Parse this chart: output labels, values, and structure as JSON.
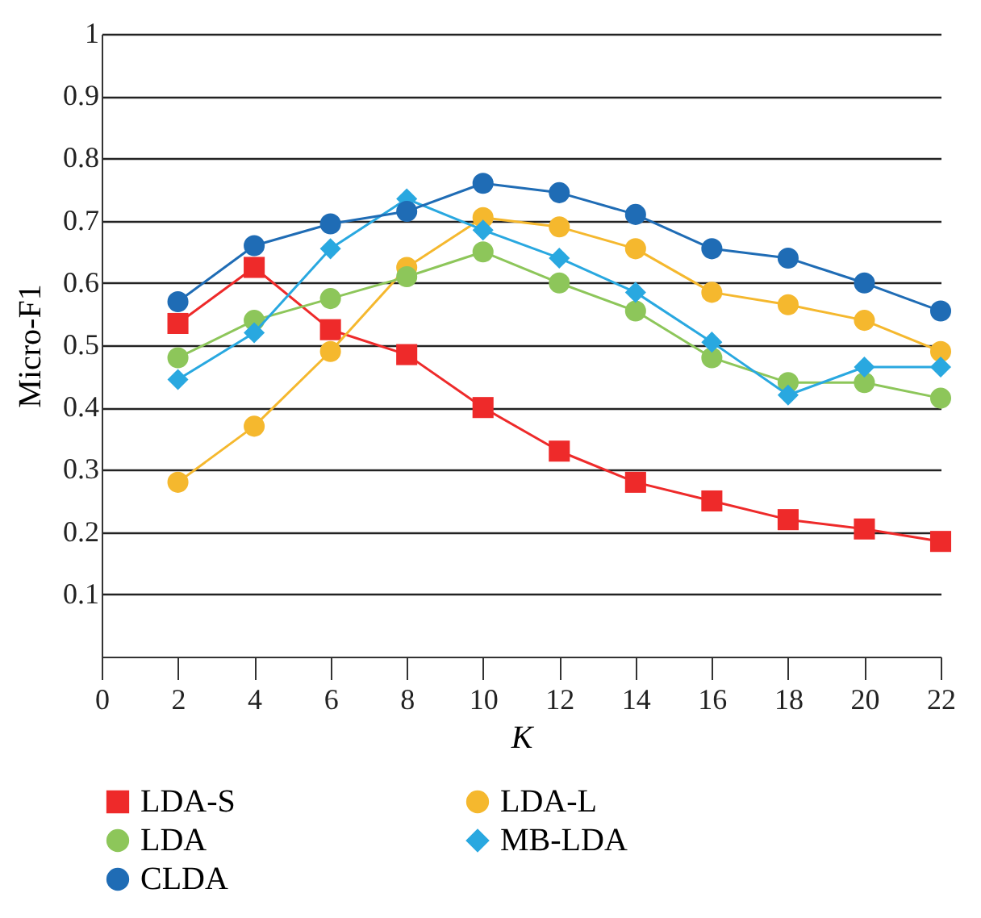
{
  "chart_data": {
    "type": "line",
    "xlabel": "K",
    "ylabel": "Micro-F1",
    "x": [
      2,
      4,
      6,
      8,
      10,
      12,
      14,
      16,
      18,
      20,
      22
    ],
    "xlim": [
      0,
      22
    ],
    "xticks": [
      0,
      2,
      4,
      6,
      8,
      10,
      12,
      14,
      16,
      18,
      20,
      22
    ],
    "ylim": [
      0,
      1
    ],
    "yticks": [
      0.1,
      0.2,
      0.3,
      0.4,
      0.5,
      0.6,
      0.7,
      0.8,
      0.9,
      1
    ],
    "grid": "y",
    "legend": "bottom",
    "series": [
      {
        "name": "LDA-S",
        "color": "#ee2a2a",
        "marker": "square",
        "values": [
          0.535,
          0.625,
          0.525,
          0.485,
          0.4,
          0.33,
          0.28,
          0.25,
          0.22,
          0.205,
          0.185
        ]
      },
      {
        "name": "LDA-L",
        "color": "#f5b82e",
        "marker": "circle",
        "values": [
          0.28,
          0.37,
          0.49,
          0.625,
          0.705,
          0.69,
          0.655,
          0.585,
          0.565,
          0.54,
          0.49
        ]
      },
      {
        "name": "LDA",
        "color": "#8dc65a",
        "marker": "circle",
        "values": [
          0.48,
          0.54,
          0.575,
          0.61,
          0.65,
          0.6,
          0.555,
          0.48,
          0.44,
          0.44,
          0.415
        ]
      },
      {
        "name": "MB-LDA",
        "color": "#29a8e0",
        "marker": "diamond",
        "values": [
          0.445,
          0.52,
          0.655,
          0.735,
          0.685,
          0.64,
          0.585,
          0.505,
          0.42,
          0.465,
          0.465
        ]
      },
      {
        "name": "CLDA",
        "color": "#1f6cb5",
        "marker": "circle",
        "values": [
          0.57,
          0.66,
          0.695,
          0.715,
          0.76,
          0.745,
          0.71,
          0.655,
          0.64,
          0.6,
          0.555
        ]
      }
    ]
  }
}
